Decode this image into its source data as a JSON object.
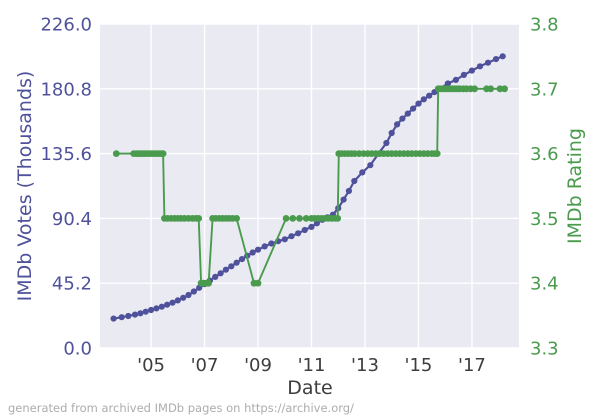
{
  "figure": {
    "x_axis_title": "Date",
    "left_axis_title": "IMDb Votes (Thousands)",
    "right_axis_title": "IMDb Rating",
    "footer_note": "generated from archived IMDb pages on https://archive.org/"
  },
  "colors": {
    "votes": "#4f529b",
    "rating": "#4a9b4e",
    "plot_background": "#eaeaf2",
    "grid": "#ffffff",
    "x_tick_text": "#3d3d3d",
    "footer_text": "#acacac"
  },
  "chart_data": {
    "type": "line",
    "title": "",
    "xlabel": "Date",
    "grid": true,
    "legend": "none",
    "x_range_years": [
      2003.09,
      2018.76
    ],
    "x_axis": {
      "label": "Date",
      "tick_years": [
        2005,
        2007,
        2009,
        2011,
        2013,
        2015,
        2017
      ],
      "tick_labels": [
        "'05",
        "'07",
        "'09",
        "'11",
        "'13",
        "'15",
        "'17"
      ]
    },
    "left_axis": {
      "label": "IMDb Votes (Thousands)",
      "lim": [
        0,
        226
      ],
      "ticks": [
        0.0,
        45.2,
        90.4,
        135.6,
        180.8,
        226.0
      ],
      "tick_labels": [
        "0.0",
        "45.2",
        "90.4",
        "135.6",
        "180.8",
        "226.0"
      ]
    },
    "right_axis": {
      "label": "IMDb Rating",
      "lim": [
        3.3,
        3.8
      ],
      "ticks": [
        3.3,
        3.4,
        3.5,
        3.6,
        3.7,
        3.8
      ],
      "tick_labels": [
        "3.3",
        "3.4",
        "3.5",
        "3.6",
        "3.7",
        "3.8"
      ]
    },
    "series": [
      {
        "name": "IMDb Votes (Thousands)",
        "axis": "left",
        "color": "#4f529b",
        "marker_radius": 3.1,
        "line_width": 2.2,
        "points": [
          [
            2003.6,
            20.5
          ],
          [
            2003.9,
            21.5
          ],
          [
            2004.15,
            22.3
          ],
          [
            2004.4,
            23.3
          ],
          [
            2004.6,
            24.2
          ],
          [
            2004.8,
            25.3
          ],
          [
            2005.0,
            26.5
          ],
          [
            2005.2,
            27.6
          ],
          [
            2005.4,
            28.8
          ],
          [
            2005.6,
            30.2
          ],
          [
            2005.8,
            31.6
          ],
          [
            2006.0,
            33.2
          ],
          [
            2006.2,
            35.0
          ],
          [
            2006.4,
            37.0
          ],
          [
            2006.6,
            39.4
          ],
          [
            2006.8,
            42.0
          ],
          [
            2007.0,
            44.5
          ],
          [
            2007.2,
            47.0
          ],
          [
            2007.4,
            49.6
          ],
          [
            2007.6,
            52.1
          ],
          [
            2007.8,
            54.6
          ],
          [
            2008.0,
            57.0
          ],
          [
            2008.2,
            59.5
          ],
          [
            2008.4,
            62.0
          ],
          [
            2008.6,
            64.4
          ],
          [
            2008.8,
            66.6
          ],
          [
            2009.0,
            68.6
          ],
          [
            2009.25,
            70.9
          ],
          [
            2009.5,
            72.9
          ],
          [
            2009.75,
            74.5
          ],
          [
            2010.0,
            75.8
          ],
          [
            2010.25,
            78.0
          ],
          [
            2010.5,
            80.0
          ],
          [
            2010.75,
            82.3
          ],
          [
            2011.0,
            84.5
          ],
          [
            2011.2,
            87.0
          ],
          [
            2011.4,
            89.4
          ],
          [
            2011.6,
            91.2
          ],
          [
            2011.8,
            93.0
          ],
          [
            2012.0,
            97.5
          ],
          [
            2012.2,
            103.5
          ],
          [
            2012.4,
            109.5
          ],
          [
            2012.6,
            116.5
          ],
          [
            2012.9,
            122.5
          ],
          [
            2013.2,
            127.5
          ],
          [
            2013.5,
            135.5
          ],
          [
            2013.8,
            143.0
          ],
          [
            2014.0,
            150.0
          ],
          [
            2014.2,
            156.0
          ],
          [
            2014.4,
            160.0
          ],
          [
            2014.6,
            163.5
          ],
          [
            2014.8,
            167.0
          ],
          [
            2015.0,
            170.5
          ],
          [
            2015.2,
            173.5
          ],
          [
            2015.4,
            176.0
          ],
          [
            2015.6,
            178.5
          ],
          [
            2015.8,
            181.0
          ],
          [
            2016.1,
            184.5
          ],
          [
            2016.4,
            187.0
          ],
          [
            2016.7,
            190.5
          ],
          [
            2017.0,
            193.5
          ],
          [
            2017.3,
            196.5
          ],
          [
            2017.6,
            199.0
          ],
          [
            2017.9,
            201.5
          ],
          [
            2018.15,
            203.5
          ]
        ]
      },
      {
        "name": "IMDb Rating",
        "axis": "right",
        "color": "#4a9b4e",
        "marker_radius": 3.4,
        "line_width": 1.9,
        "points": [
          [
            2003.7,
            3.6
          ],
          [
            2004.35,
            3.6
          ],
          [
            2004.45,
            3.6
          ],
          [
            2004.55,
            3.6
          ],
          [
            2004.63,
            3.6
          ],
          [
            2004.72,
            3.6
          ],
          [
            2004.8,
            3.6
          ],
          [
            2004.9,
            3.6
          ],
          [
            2005.0,
            3.6
          ],
          [
            2005.1,
            3.6
          ],
          [
            2005.2,
            3.6
          ],
          [
            2005.3,
            3.6
          ],
          [
            2005.38,
            3.6
          ],
          [
            2005.45,
            3.6
          ],
          [
            2005.5,
            3.5
          ],
          [
            2005.62,
            3.5
          ],
          [
            2005.75,
            3.5
          ],
          [
            2005.88,
            3.5
          ],
          [
            2006.0,
            3.5
          ],
          [
            2006.12,
            3.5
          ],
          [
            2006.25,
            3.5
          ],
          [
            2006.4,
            3.5
          ],
          [
            2006.55,
            3.5
          ],
          [
            2006.68,
            3.5
          ],
          [
            2006.78,
            3.5
          ],
          [
            2006.87,
            3.4
          ],
          [
            2006.97,
            3.4
          ],
          [
            2007.07,
            3.4
          ],
          [
            2007.15,
            3.4
          ],
          [
            2007.3,
            3.5
          ],
          [
            2007.42,
            3.5
          ],
          [
            2007.55,
            3.5
          ],
          [
            2007.68,
            3.5
          ],
          [
            2007.8,
            3.5
          ],
          [
            2007.92,
            3.5
          ],
          [
            2008.05,
            3.5
          ],
          [
            2008.2,
            3.5
          ],
          [
            2008.85,
            3.4
          ],
          [
            2009.0,
            3.4
          ],
          [
            2010.05,
            3.5
          ],
          [
            2010.3,
            3.5
          ],
          [
            2010.55,
            3.5
          ],
          [
            2010.8,
            3.5
          ],
          [
            2011.0,
            3.5
          ],
          [
            2011.12,
            3.5
          ],
          [
            2011.25,
            3.5
          ],
          [
            2011.38,
            3.5
          ],
          [
            2011.5,
            3.5
          ],
          [
            2011.62,
            3.5
          ],
          [
            2011.75,
            3.5
          ],
          [
            2011.88,
            3.5
          ],
          [
            2011.98,
            3.5
          ],
          [
            2012.02,
            3.6
          ],
          [
            2012.12,
            3.6
          ],
          [
            2012.25,
            3.6
          ],
          [
            2012.38,
            3.6
          ],
          [
            2012.5,
            3.6
          ],
          [
            2012.62,
            3.6
          ],
          [
            2012.78,
            3.6
          ],
          [
            2012.95,
            3.6
          ],
          [
            2013.1,
            3.6
          ],
          [
            2013.25,
            3.6
          ],
          [
            2013.4,
            3.6
          ],
          [
            2013.55,
            3.6
          ],
          [
            2013.7,
            3.6
          ],
          [
            2013.85,
            3.6
          ],
          [
            2014.0,
            3.6
          ],
          [
            2014.15,
            3.6
          ],
          [
            2014.3,
            3.6
          ],
          [
            2014.45,
            3.6
          ],
          [
            2014.6,
            3.6
          ],
          [
            2014.75,
            3.6
          ],
          [
            2014.9,
            3.6
          ],
          [
            2015.05,
            3.6
          ],
          [
            2015.2,
            3.6
          ],
          [
            2015.35,
            3.6
          ],
          [
            2015.5,
            3.6
          ],
          [
            2015.62,
            3.6
          ],
          [
            2015.7,
            3.6
          ],
          [
            2015.74,
            3.7
          ],
          [
            2015.85,
            3.7
          ],
          [
            2015.95,
            3.7
          ],
          [
            2016.05,
            3.7
          ],
          [
            2016.15,
            3.7
          ],
          [
            2016.25,
            3.7
          ],
          [
            2016.35,
            3.7
          ],
          [
            2016.45,
            3.7
          ],
          [
            2016.55,
            3.7
          ],
          [
            2016.68,
            3.7
          ],
          [
            2016.8,
            3.7
          ],
          [
            2016.95,
            3.7
          ],
          [
            2017.1,
            3.7
          ],
          [
            2017.55,
            3.7
          ],
          [
            2017.7,
            3.7
          ],
          [
            2018.05,
            3.7
          ],
          [
            2018.22,
            3.7
          ]
        ]
      }
    ]
  }
}
